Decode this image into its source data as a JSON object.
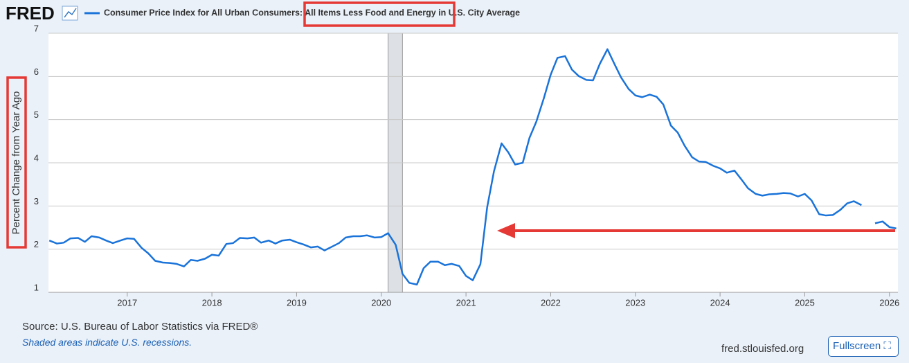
{
  "logo": "FRED",
  "source": "Source: U.S. Bureau of Labor Statistics via FRED®",
  "note": "Shaded areas indicate U.S. recessions.",
  "site": "fred.stlouisfed.org",
  "fullscreen": "Fullscreen",
  "chart_data": {
    "type": "line",
    "series": [
      {
        "name": "Consumer Price Index for All Urban Consumers: All Items Less Food and Energy in U.S. City Average",
        "color": "#1a73d9",
        "values": [
          2.2,
          2.13,
          2.15,
          2.25,
          2.26,
          2.17,
          2.3,
          2.27,
          2.2,
          2.14,
          2.2,
          2.25,
          2.24,
          2.03,
          1.9,
          1.73,
          1.69,
          1.68,
          1.66,
          1.6,
          1.75,
          1.73,
          1.78,
          1.87,
          1.85,
          2.12,
          2.14,
          2.26,
          2.25,
          2.27,
          2.15,
          2.2,
          2.13,
          2.2,
          2.22,
          2.16,
          2.11,
          2.04,
          2.06,
          1.97,
          2.06,
          2.14,
          2.27,
          2.3,
          2.3,
          2.32,
          2.27,
          2.28,
          2.37,
          2.1,
          1.43,
          1.22,
          1.18,
          1.56,
          1.71,
          1.71,
          1.63,
          1.66,
          1.61,
          1.38,
          1.28,
          1.65,
          2.97,
          3.8,
          4.45,
          4.24,
          3.96,
          4.0,
          4.58,
          4.95,
          5.5,
          6.04,
          6.43,
          6.47,
          6.16,
          6.01,
          5.92,
          5.91,
          6.29,
          6.63,
          6.3,
          5.98,
          5.71,
          5.56,
          5.52,
          5.58,
          5.53,
          5.35,
          4.86,
          4.7,
          4.4,
          4.13,
          4.03,
          4.02,
          3.93,
          3.87,
          3.77,
          3.82,
          3.62,
          3.41,
          3.28,
          3.24,
          3.27,
          3.28,
          3.3,
          3.29,
          3.22,
          3.28,
          3.13,
          2.81,
          2.78,
          2.79,
          2.91,
          3.06,
          3.11,
          3.02,
          null,
          2.6,
          2.64,
          2.51,
          2.48
        ]
      }
    ],
    "x": [
      2016.08,
      2016.17,
      2016.25,
      2016.33,
      2016.42,
      2016.5,
      2016.58,
      2016.67,
      2016.75,
      2016.83,
      2016.92,
      2017.0,
      2017.08,
      2017.17,
      2017.25,
      2017.33,
      2017.42,
      2017.5,
      2017.58,
      2017.67,
      2017.75,
      2017.83,
      2017.92,
      2018.0,
      2018.08,
      2018.17,
      2018.25,
      2018.33,
      2018.42,
      2018.5,
      2018.58,
      2018.67,
      2018.75,
      2018.83,
      2018.92,
      2019.0,
      2019.08,
      2019.17,
      2019.25,
      2019.33,
      2019.42,
      2019.5,
      2019.58,
      2019.67,
      2019.75,
      2019.83,
      2019.92,
      2020.0,
      2020.08,
      2020.17,
      2020.25,
      2020.33,
      2020.42,
      2020.5,
      2020.58,
      2020.67,
      2020.75,
      2020.83,
      2020.92,
      2021.0,
      2021.08,
      2021.17,
      2021.25,
      2021.33,
      2021.42,
      2021.5,
      2021.58,
      2021.67,
      2021.75,
      2021.83,
      2021.92,
      2022.0,
      2022.08,
      2022.17,
      2022.25,
      2022.33,
      2022.42,
      2022.5,
      2022.58,
      2022.67,
      2022.75,
      2022.83,
      2022.92,
      2023.0,
      2023.08,
      2023.17,
      2023.25,
      2023.33,
      2023.42,
      2023.5,
      2023.58,
      2023.67,
      2023.75,
      2023.83,
      2023.92,
      2024.0,
      2024.08,
      2024.17,
      2024.25,
      2024.33,
      2024.42,
      2024.5,
      2024.58,
      2024.67,
      2024.75,
      2024.83,
      2024.92,
      2025.0,
      2025.08,
      2025.17,
      2025.25,
      2025.33,
      2025.42,
      2025.5,
      2025.58,
      2025.67,
      2025.75,
      2025.83,
      2025.92,
      2026.0,
      2026.08
    ],
    "xlim": [
      2016.07,
      2026.1
    ],
    "xticks": [
      2017,
      2018,
      2019,
      2020,
      2021,
      2022,
      2023,
      2024,
      2025,
      2026
    ],
    "ylim": [
      1,
      7
    ],
    "yticks": [
      1,
      2,
      3,
      4,
      5,
      6,
      7
    ],
    "y_label": "Percent Change from Year Ago",
    "grid": true,
    "recessions": [
      {
        "start": 2020.08,
        "end": 2020.25
      }
    ]
  }
}
